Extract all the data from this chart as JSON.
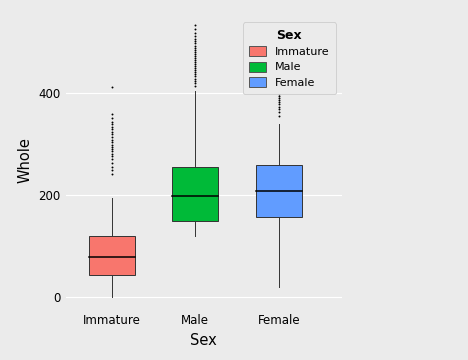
{
  "categories": [
    "Immature",
    "Male",
    "Female"
  ],
  "colors": [
    "#F8766D",
    "#00BA38",
    "#619CFF"
  ],
  "xlabel": "Sex",
  "ylabel": "Whole",
  "ylim": [
    -25,
    560
  ],
  "yticks": [
    0,
    200,
    400
  ],
  "background_color": "#EBEBEB",
  "grid_color": "#FFFFFF",
  "legend_title": "Sex",
  "legend_labels": [
    "Immature",
    "Male",
    "Female"
  ],
  "groups": {
    "immature": {
      "q1": 43,
      "median": 78,
      "q3": 120,
      "whisker_low": 0,
      "whisker_high": 194,
      "outliers": [
        240,
        248,
        255,
        262,
        270,
        275,
        280,
        285,
        290,
        294,
        298,
        303,
        308,
        313,
        318,
        323,
        328,
        333,
        338,
        342,
        350,
        358,
        410
      ]
    },
    "male": {
      "q1": 148,
      "median": 197,
      "q3": 255,
      "whisker_low": 120,
      "whisker_high": 403,
      "outliers": [
        413,
        418,
        423,
        427,
        432,
        436,
        440,
        444,
        448,
        452,
        456,
        460,
        464,
        468,
        472,
        476,
        480,
        484,
        488,
        492,
        496,
        500,
        505,
        510,
        517,
        525,
        533
      ]
    },
    "female": {
      "q1": 157,
      "median": 207,
      "q3": 258,
      "whisker_low": 20,
      "whisker_high": 338,
      "outliers": [
        355,
        362,
        367,
        372,
        377,
        382,
        386,
        390,
        394,
        398,
        402,
        408,
        414,
        420,
        430,
        445,
        455
      ]
    }
  }
}
